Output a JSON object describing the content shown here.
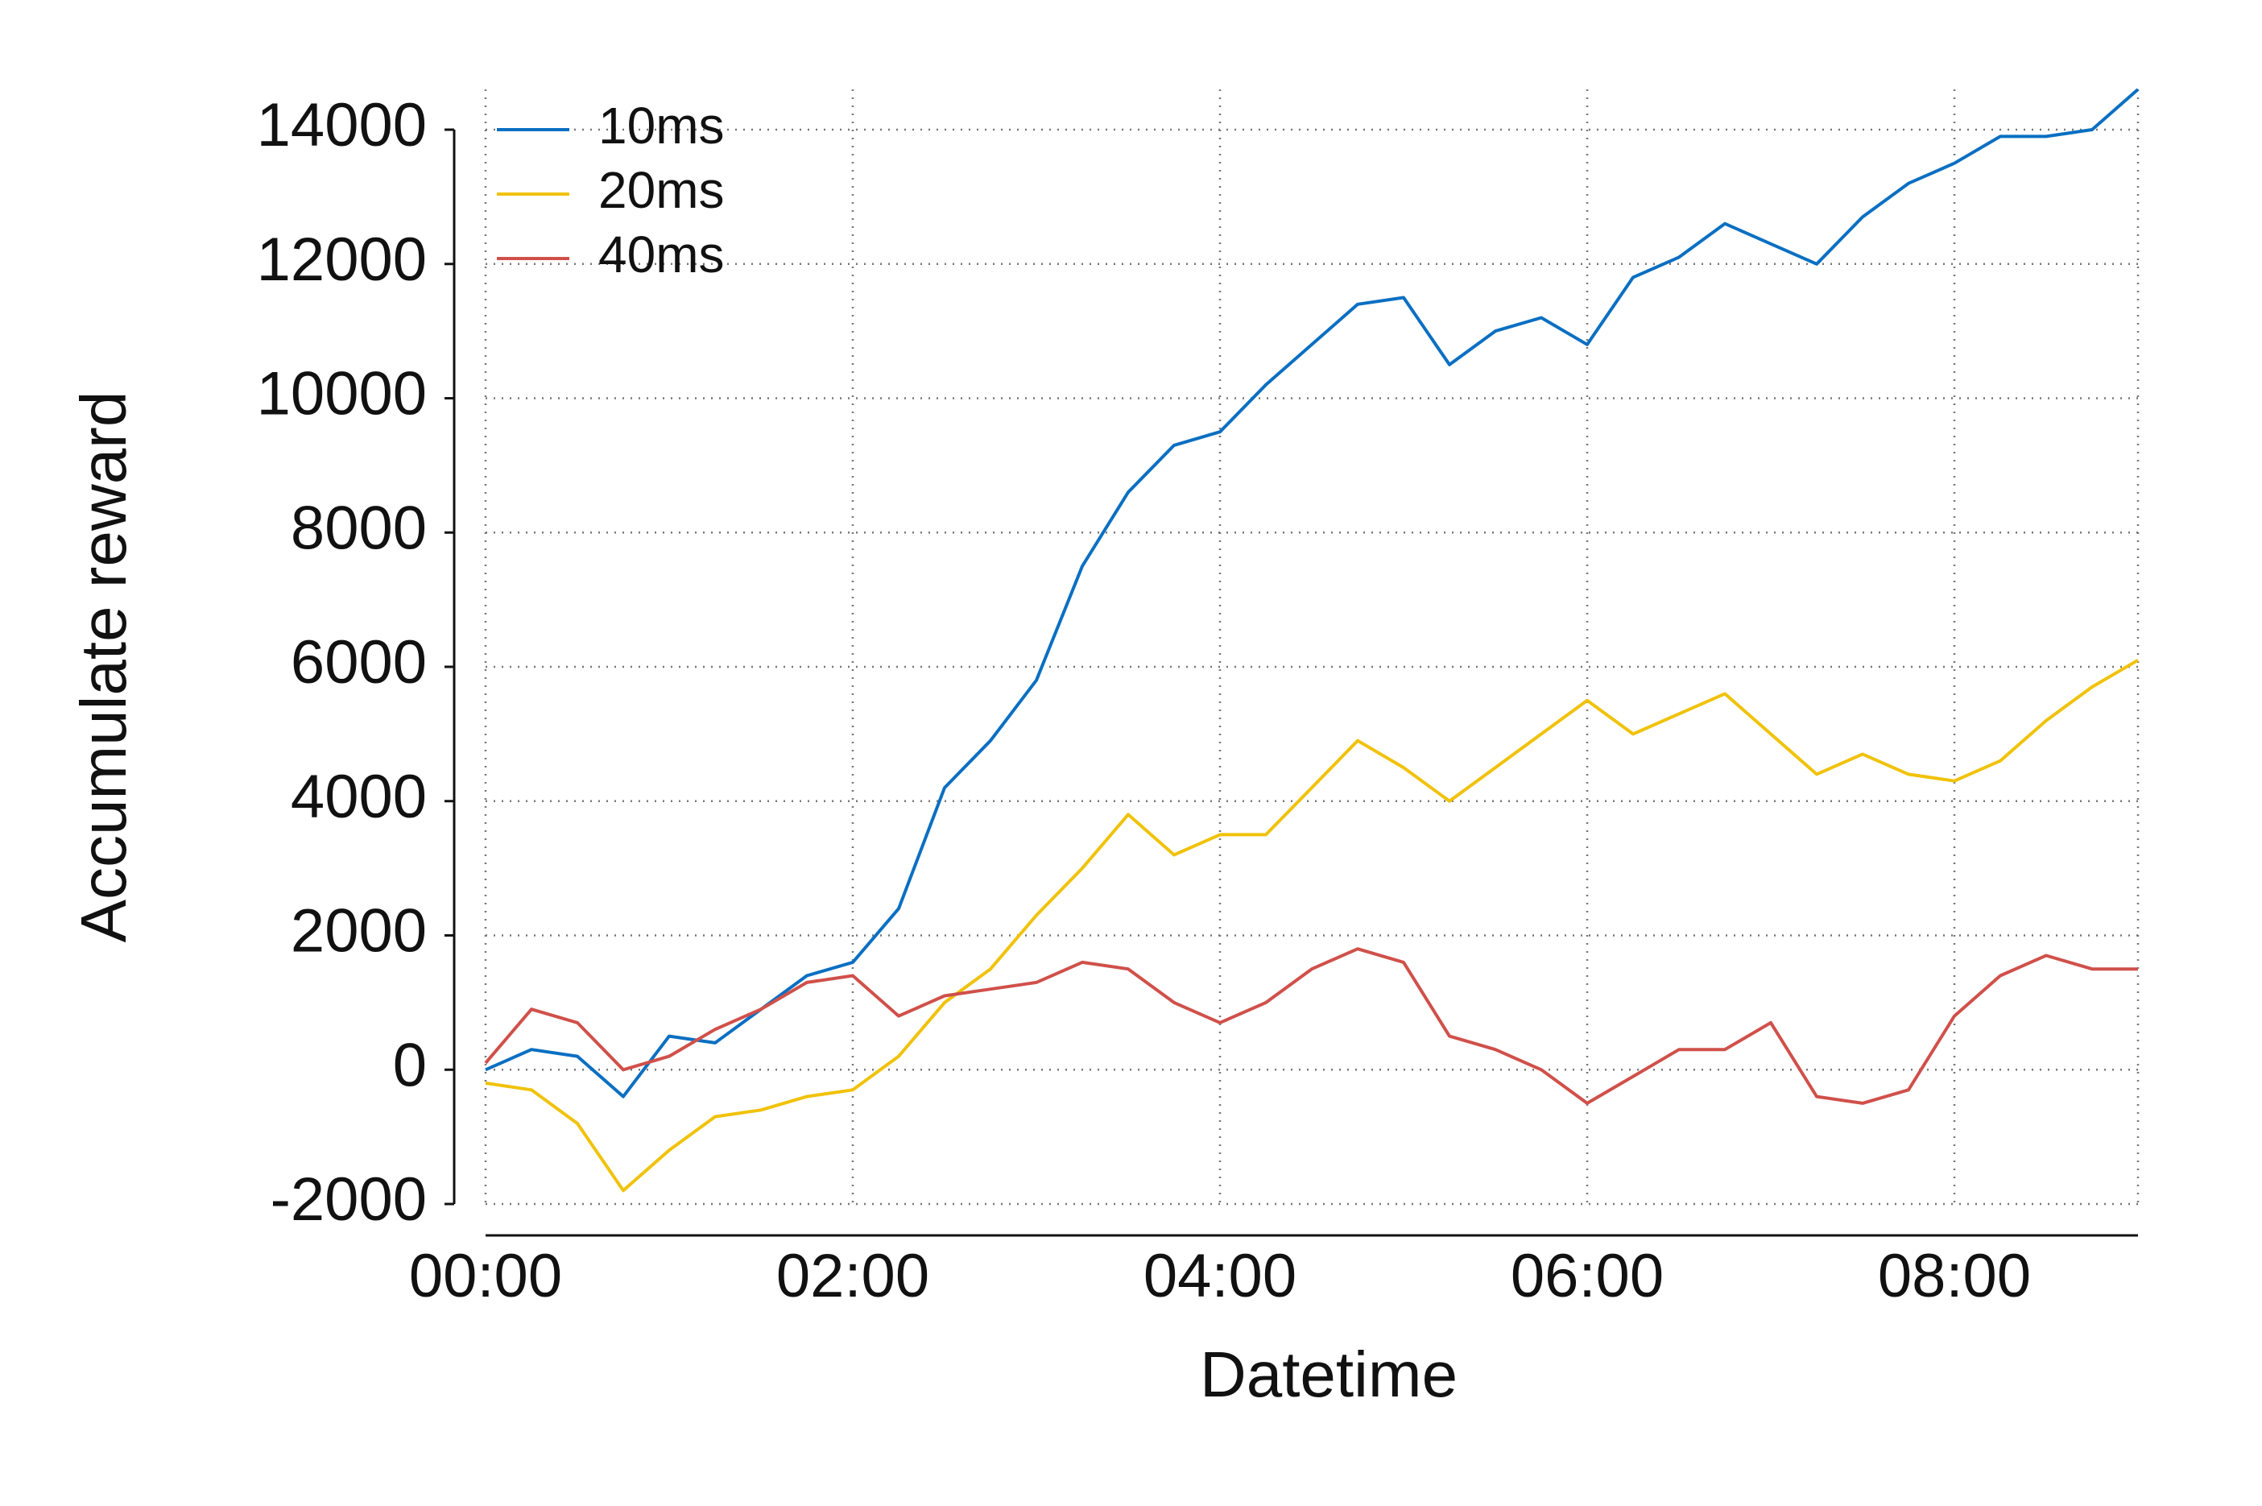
{
  "chart_data": {
    "type": "line",
    "x_label": "Datetime",
    "y_label": "Accumulate reward",
    "x": [
      0,
      0.25,
      0.5,
      0.75,
      1,
      1.25,
      1.5,
      1.75,
      2,
      2.25,
      2.5,
      2.75,
      3,
      3.25,
      3.5,
      3.75,
      4,
      4.25,
      4.5,
      4.75,
      5,
      5.25,
      5.5,
      5.75,
      6,
      6.25,
      6.5,
      6.75,
      7,
      7.25,
      7.5,
      7.75,
      8,
      8.25,
      8.5,
      8.75,
      9
    ],
    "series": [
      {
        "name": "10ms",
        "color": "#0a6fc2",
        "values": [
          0,
          300,
          200,
          -400,
          500,
          400,
          900,
          1400,
          1600,
          2400,
          4200,
          4900,
          5800,
          7500,
          8600,
          9300,
          9500,
          10200,
          10800,
          11400,
          11500,
          10500,
          11000,
          11200,
          10800,
          11800,
          12100,
          12600,
          12300,
          12000,
          12700,
          13200,
          13500,
          13900,
          13900,
          14000,
          14600
        ]
      },
      {
        "name": "20ms",
        "color": "#f0c20a",
        "values": [
          -200,
          -300,
          -800,
          -1800,
          -1200,
          -700,
          -600,
          -400,
          -300,
          200,
          1000,
          1500,
          2300,
          3000,
          3800,
          3200,
          3500,
          3500,
          4200,
          4900,
          4500,
          4000,
          4500,
          5000,
          5500,
          5000,
          5300,
          5600,
          5000,
          4400,
          4700,
          4400,
          4300,
          4600,
          5200,
          5700,
          6100
        ]
      },
      {
        "name": "40ms",
        "color": "#d0504a",
        "values": [
          100,
          900,
          700,
          0,
          200,
          600,
          900,
          1300,
          1400,
          800,
          1100,
          1200,
          1300,
          1600,
          1500,
          1000,
          700,
          1000,
          1500,
          1800,
          1600,
          500,
          300,
          0,
          -500,
          -100,
          300,
          300,
          700,
          -400,
          -500,
          -300,
          800,
          1400,
          1700,
          1500,
          1500
        ]
      }
    ],
    "xlim": [
      0,
      9
    ],
    "xticks": [
      {
        "value": 0,
        "label": "00:00"
      },
      {
        "value": 2,
        "label": "02:00"
      },
      {
        "value": 4,
        "label": "04:00"
      },
      {
        "value": 6,
        "label": "06:00"
      },
      {
        "value": 8,
        "label": "08:00"
      }
    ],
    "ylim": [
      -2000,
      14600
    ],
    "yticks": [
      -2000,
      0,
      2000,
      4000,
      6000,
      8000,
      10000,
      12000,
      14000
    ],
    "grid": true,
    "legend": "upper left"
  }
}
